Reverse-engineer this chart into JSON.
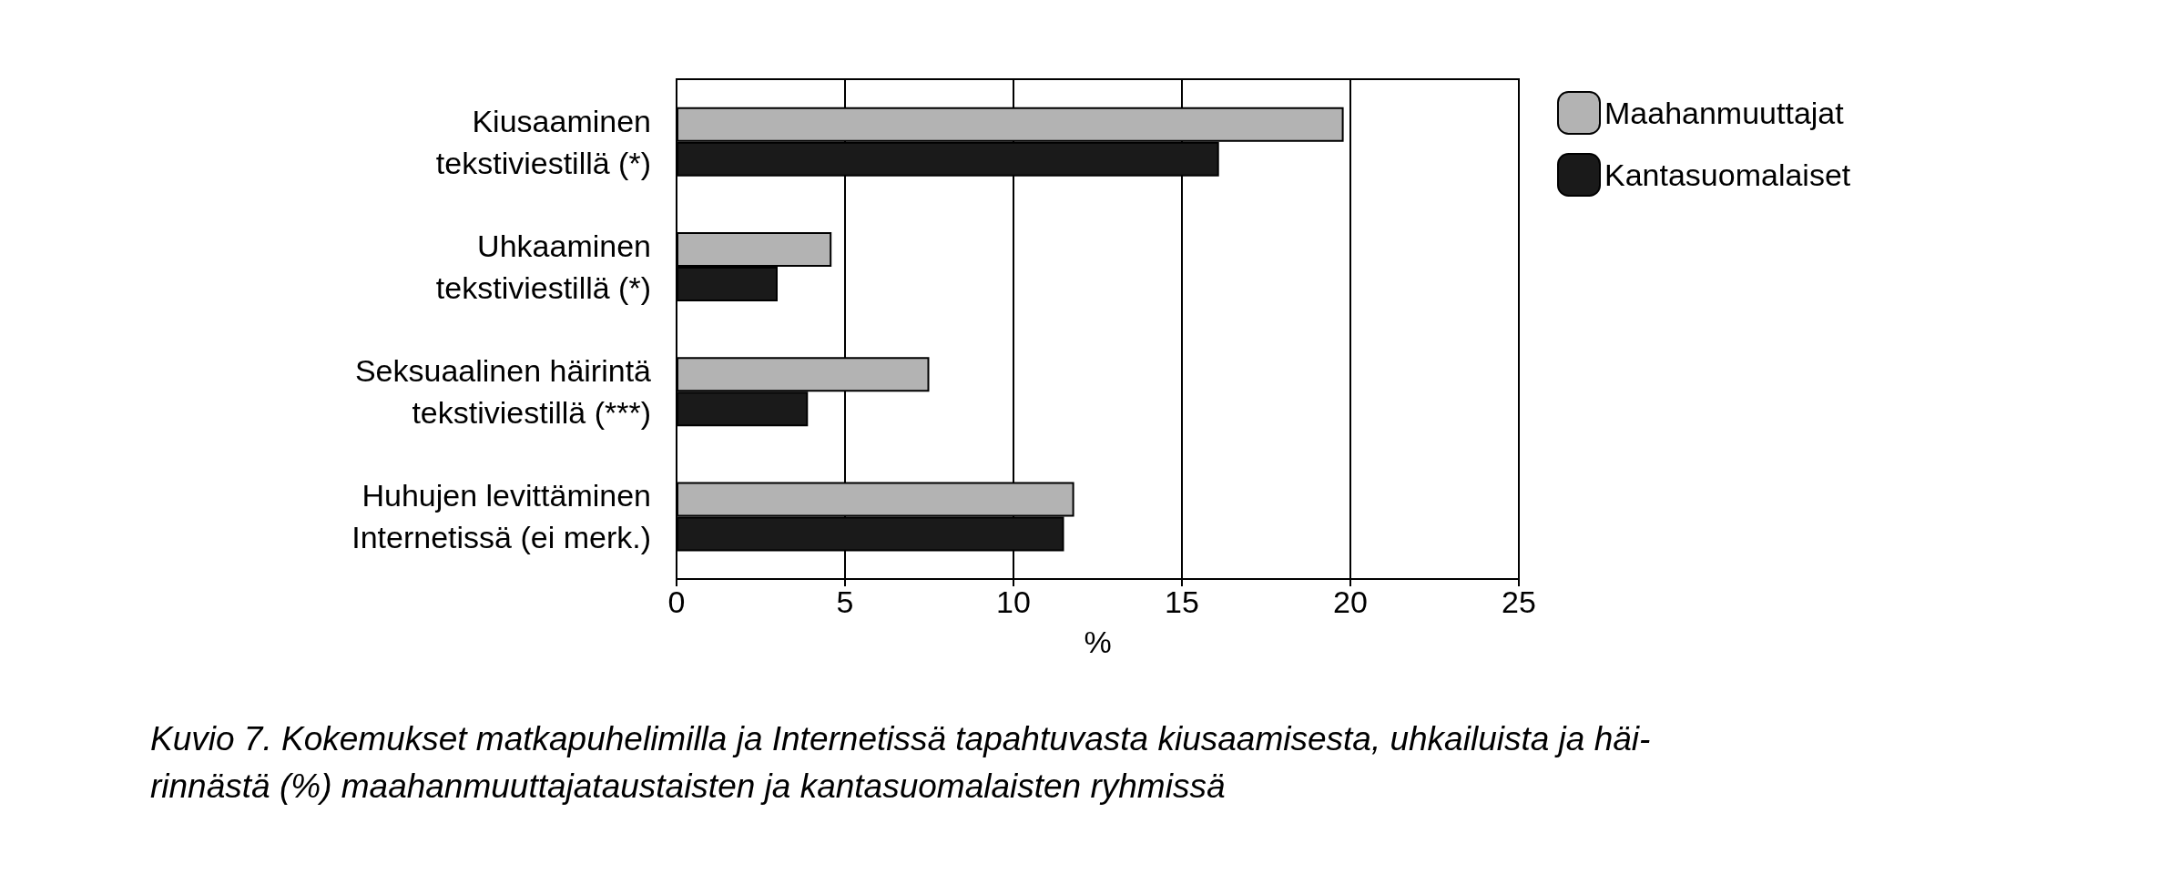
{
  "chart_data": {
    "type": "bar",
    "orientation": "horizontal",
    "categories": [
      "Kiusaaminen\ntekstiviestillä (*)",
      "Uhkaaminen\ntekstiviestillä (*)",
      "Seksuaalinen häirintä\ntekstiviestillä (***)",
      "Huhujen levittäminen\nInternetissä (ei merk.)"
    ],
    "series": [
      {
        "name": "Maahanmuuttajat",
        "color": "#b3b3b3",
        "values": [
          19.8,
          4.6,
          7.5,
          11.8
        ]
      },
      {
        "name": "Kantasuomalaiset",
        "color": "#1a1a1a",
        "values": [
          16.1,
          3.0,
          3.9,
          11.5
        ]
      }
    ],
    "xlabel": "%",
    "xlim": [
      0,
      25
    ],
    "xticks": [
      0,
      5,
      10,
      15,
      20,
      25
    ],
    "grid": "x",
    "legend": "top right",
    "annotations": [
      "Kuvio 7. Kokemukset matkapuhelimilla ja Internetissä tapahtuvasta kiusaamisesta, uhkailuista ja häi-\nrinnästä (%) maahanmuuttajataustaisten ja kantasuomalaisten ryhmissä"
    ]
  }
}
